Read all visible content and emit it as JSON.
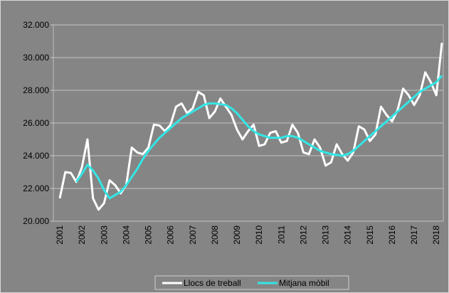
{
  "chart_data": {
    "type": "line",
    "categories": [
      "2001",
      null,
      null,
      null,
      "2002",
      null,
      null,
      null,
      "2003",
      null,
      null,
      null,
      "2004",
      null,
      null,
      null,
      "2005",
      null,
      null,
      null,
      "2006",
      null,
      null,
      null,
      "2007",
      null,
      null,
      null,
      "2008",
      null,
      null,
      null,
      "2009",
      null,
      null,
      null,
      "2010",
      null,
      null,
      null,
      "2011",
      null,
      null,
      null,
      "2012",
      null,
      null,
      null,
      "2013",
      null,
      null,
      null,
      "2014",
      null,
      null,
      null,
      "2015",
      null,
      null,
      null,
      "2016",
      null,
      null,
      null,
      "2017",
      null,
      null,
      null,
      "2018",
      null
    ],
    "series": [
      {
        "name": "Llocs de treball",
        "color": "#ffffff",
        "values": [
          21400,
          23000,
          22950,
          22400,
          23300,
          25000,
          21400,
          20700,
          21100,
          22500,
          22200,
          21700,
          22200,
          24500,
          24200,
          24100,
          24500,
          25900,
          25850,
          25500,
          25900,
          27000,
          27200,
          26600,
          26900,
          27900,
          27700,
          26300,
          26700,
          27500,
          27000,
          26500,
          25600,
          25000,
          25500,
          25900,
          24600,
          24700,
          25400,
          25500,
          24800,
          24900,
          25900,
          25400,
          24200,
          24100,
          25000,
          24500,
          23400,
          23600,
          24700,
          24100,
          23700,
          24200,
          25800,
          25600,
          24900,
          25300,
          27000,
          26500,
          26100,
          26800,
          28100,
          27700,
          27100,
          27700,
          29100,
          28500,
          27700,
          30900
        ]
      },
      {
        "name": "Mitjana mòbil",
        "color": "#33e6e6",
        "values": [
          null,
          null,
          null,
          22400,
          22900,
          23450,
          23100,
          22600,
          21900,
          21400,
          21600,
          21800,
          22200,
          22700,
          23200,
          23800,
          24300,
          24700,
          25100,
          25400,
          25700,
          26000,
          26300,
          26500,
          26700,
          26900,
          27100,
          27200,
          27200,
          27150,
          27100,
          26900,
          26600,
          26200,
          25800,
          25500,
          25300,
          25200,
          25100,
          25100,
          25100,
          25200,
          25200,
          25100,
          24900,
          24700,
          24500,
          24300,
          24200,
          24100,
          24050,
          24000,
          24100,
          24300,
          24600,
          24900,
          25200,
          25500,
          25800,
          26100,
          26400,
          26700,
          27000,
          27300,
          27600,
          27900,
          28100,
          28300,
          28500,
          28900
        ]
      }
    ],
    "ylim": [
      20000,
      32000
    ],
    "yticks": [
      {
        "value": 20000,
        "label": "20.000"
      },
      {
        "value": 22000,
        "label": "22.000"
      },
      {
        "value": 24000,
        "label": "24.000"
      },
      {
        "value": 26000,
        "label": "26.000"
      },
      {
        "value": 28000,
        "label": "28.000"
      },
      {
        "value": 30000,
        "label": "30.000"
      },
      {
        "value": 32000,
        "label": "32.000"
      }
    ],
    "grid": true,
    "legend": "bottom"
  }
}
